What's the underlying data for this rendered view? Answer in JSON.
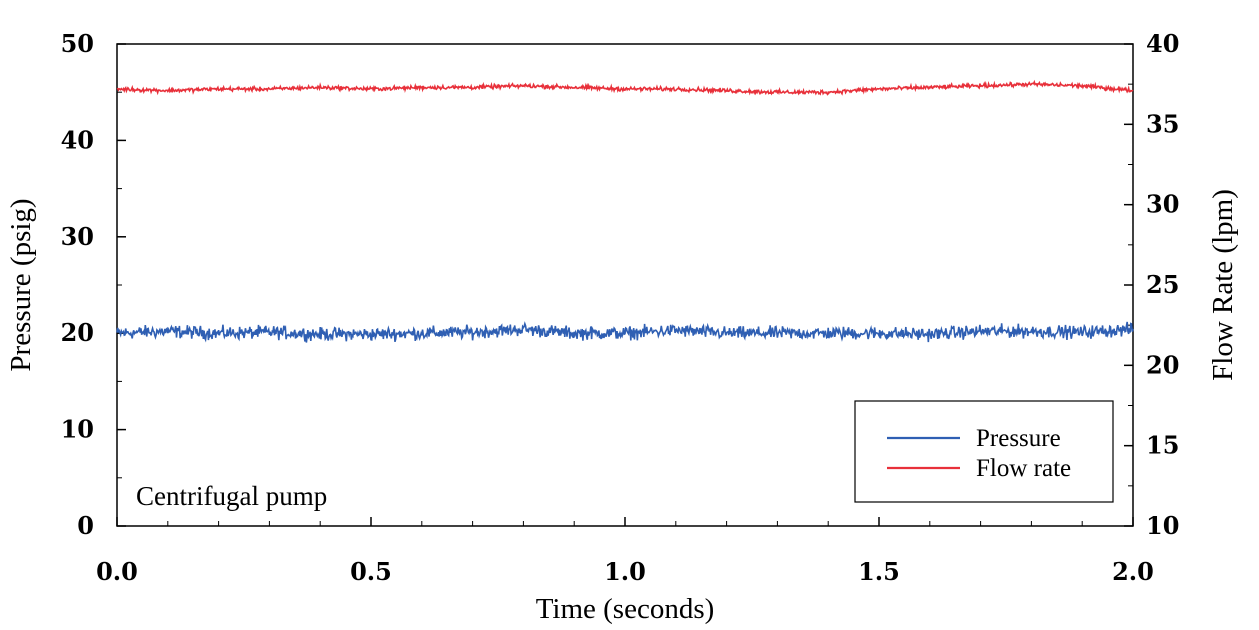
{
  "chart_data": {
    "type": "line",
    "annotation": "Centrifugal pump",
    "xlabel": "Time (seconds)",
    "ylabel": "Pressure (psig)",
    "y2label": "Flow Rate (lpm)",
    "xlim": [
      0,
      2.0
    ],
    "ylim": [
      0,
      50
    ],
    "y2lim": [
      10,
      40
    ],
    "x_ticks": [
      "0.0",
      "0.5",
      "1.0",
      "1.5",
      "2.0"
    ],
    "y_ticks": [
      "0",
      "10",
      "20",
      "30",
      "40",
      "50"
    ],
    "y2_ticks": [
      "10",
      "15",
      "20",
      "25",
      "30",
      "35",
      "40"
    ],
    "grid": false,
    "legend_position": "bottom-right",
    "series": [
      {
        "name": "Pressure",
        "axis": "left",
        "color": "#2f5fb3",
        "x": [
          0.0,
          0.1,
          0.2,
          0.3,
          0.4,
          0.5,
          0.6,
          0.7,
          0.8,
          0.9,
          1.0,
          1.1,
          1.2,
          1.3,
          1.4,
          1.5,
          1.6,
          1.7,
          1.8,
          1.9,
          2.0
        ],
        "values": [
          20.0,
          20.2,
          20.0,
          20.1,
          19.9,
          19.9,
          20.0,
          20.1,
          20.4,
          20.0,
          20.0,
          20.3,
          20.0,
          20.0,
          20.0,
          20.0,
          19.9,
          20.2,
          20.2,
          20.1,
          20.4
        ],
        "noise": 0.65
      },
      {
        "name": "Flow rate",
        "axis": "right",
        "color": "#e8303a",
        "x": [
          0.0,
          0.1,
          0.2,
          0.3,
          0.4,
          0.5,
          0.6,
          0.7,
          0.8,
          0.9,
          1.0,
          1.1,
          1.2,
          1.3,
          1.4,
          1.5,
          1.6,
          1.7,
          1.8,
          1.9,
          2.0
        ],
        "values": [
          37.2,
          37.1,
          37.2,
          37.2,
          37.3,
          37.2,
          37.3,
          37.3,
          37.4,
          37.3,
          37.2,
          37.2,
          37.1,
          37.0,
          37.0,
          37.2,
          37.3,
          37.4,
          37.5,
          37.4,
          37.1
        ],
        "noise": 0.12
      }
    ]
  }
}
